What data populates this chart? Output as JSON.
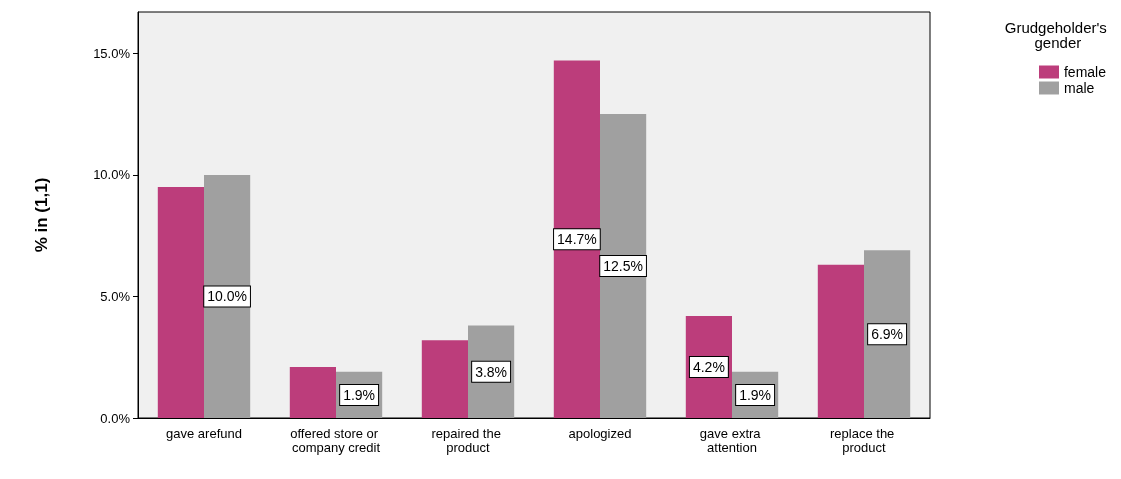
{
  "chart_data": {
    "type": "bar",
    "ylabel": "% in (1,1)",
    "legend_title": "Grudgeholder's gender",
    "legend": "top right",
    "grid": false,
    "categories": [
      "gave arefund",
      "offered store or company credit",
      "repaired the product",
      "apologized",
      "gave extra attention",
      "replace the product"
    ],
    "series": [
      {
        "name": "female",
        "color": "#bc3d7b",
        "values": [
          9.5,
          2.1,
          3.2,
          14.7,
          4.2,
          6.3
        ],
        "value_labels": [
          null,
          null,
          null,
          "14.7%",
          "4.2%",
          null
        ]
      },
      {
        "name": "male",
        "color": "#a0a0a0",
        "values": [
          10.0,
          1.9,
          3.8,
          12.5,
          1.9,
          6.9
        ],
        "value_labels": [
          "10.0%",
          "1.9%",
          "3.8%",
          "12.5%",
          "1.9%",
          "6.9%"
        ]
      }
    ],
    "ylim": [
      0,
      16.7
    ],
    "yticks": [
      {
        "value": 0,
        "label": "0.0%"
      },
      {
        "value": 5,
        "label": "5.0%"
      },
      {
        "value": 10,
        "label": "10.0%"
      },
      {
        "value": 15,
        "label": "15.0%"
      }
    ]
  }
}
